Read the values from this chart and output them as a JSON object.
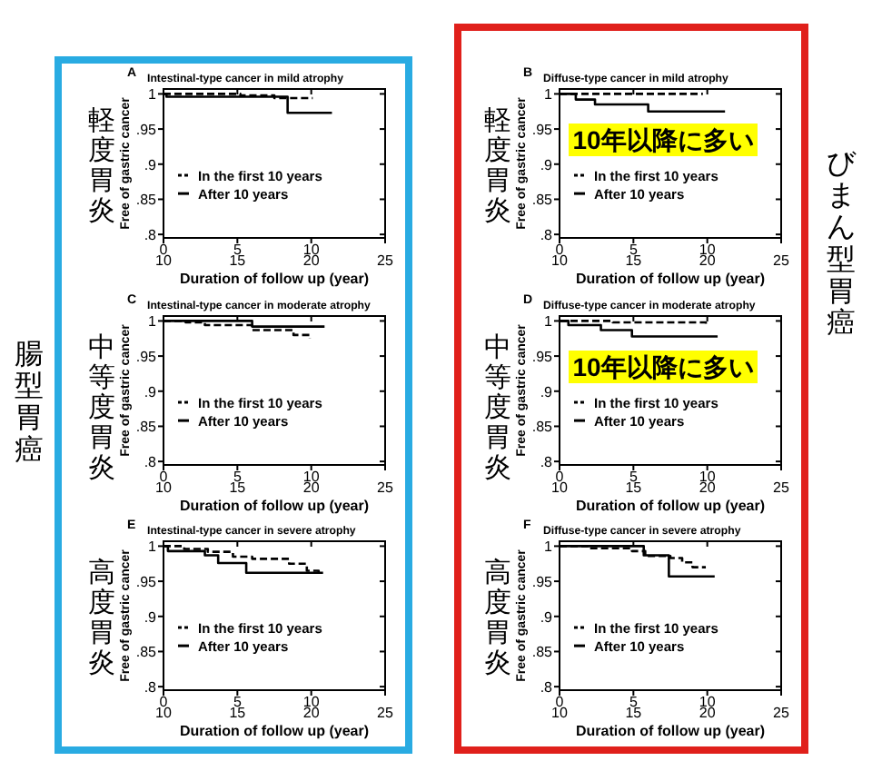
{
  "chart_data": [
    {
      "type": "step",
      "title": "Intestinal-type cancer in mild atrophy",
      "annotations": [
        "A",
        "軽度胃炎"
      ],
      "xlabel": "Duration of follow up (year)",
      "ylabel": "Free of gastric cancer",
      "xlim": [
        10,
        25
      ],
      "xticks": [
        10,
        15,
        20,
        25
      ],
      "x2lim": [
        0,
        15
      ],
      "x2ticks": [
        0,
        5,
        10
      ],
      "ylim": [
        0.795,
        1.007
      ],
      "yticks": [
        {
          "value": 1,
          "label": "1"
        },
        {
          "value": 0.95,
          "label": ".95"
        },
        {
          "value": 0.9,
          "label": ".9"
        },
        {
          "value": 0.85,
          "label": ".85"
        },
        {
          "value": 0.8,
          "label": ".8"
        }
      ],
      "legend": "left",
      "series": [
        {
          "name": "In the first 10 years",
          "color": "#000000",
          "line_style": "dashed",
          "x": [
            10,
            15.2,
            17.5,
            20.1
          ],
          "values": [
            1,
            0.998,
            0.994,
            0.994
          ]
        },
        {
          "name": "After 10 years",
          "color": "#000000",
          "line_style": "solid",
          "x": [
            10,
            10.2,
            18.4,
            21.4
          ],
          "values": [
            1,
            0.996,
            0.973,
            0.973
          ]
        }
      ]
    },
    {
      "type": "step",
      "title": "Diffuse-type cancer in mild atrophy",
      "annotations": [
        "B",
        "軽度胃炎",
        "10年以降に多い"
      ],
      "xlabel": "Duration of follow up (year)",
      "ylabel": "Free of gastric cancer",
      "xlim": [
        10,
        25
      ],
      "xticks": [
        10,
        15,
        20,
        25
      ],
      "x2lim": [
        0,
        15
      ],
      "x2ticks": [
        0,
        5,
        10
      ],
      "ylim": [
        0.795,
        1.007
      ],
      "yticks": [
        {
          "value": 1,
          "label": "1"
        },
        {
          "value": 0.95,
          "label": ".95"
        },
        {
          "value": 0.9,
          "label": ".9"
        },
        {
          "value": 0.85,
          "label": ".85"
        },
        {
          "value": 0.8,
          "label": ".8"
        }
      ],
      "legend": "left",
      "series": [
        {
          "name": "In the first 10 years",
          "color": "#000000",
          "line_style": "dashed",
          "x": [
            10,
            19.7
          ],
          "values": [
            1,
            1
          ]
        },
        {
          "name": "After 10 years",
          "color": "#000000",
          "line_style": "solid",
          "x": [
            10,
            11.1,
            12.4,
            16,
            21.2
          ],
          "values": [
            1,
            0.992,
            0.985,
            0.975,
            0.975
          ]
        }
      ]
    },
    {
      "type": "step",
      "title": "Intestinal-type cancer in moderate atrophy",
      "annotations": [
        "C",
        "中等度胃炎"
      ],
      "xlabel": "Duration of follow up (year)",
      "ylabel": "Free of gastric cancer",
      "xlim": [
        10,
        25
      ],
      "xticks": [
        10,
        15,
        20,
        25
      ],
      "x2lim": [
        0,
        15
      ],
      "x2ticks": [
        0,
        5,
        10
      ],
      "ylim": [
        0.795,
        1.007
      ],
      "yticks": [
        {
          "value": 1,
          "label": "1"
        },
        {
          "value": 0.95,
          "label": ".95"
        },
        {
          "value": 0.9,
          "label": ".9"
        },
        {
          "value": 0.85,
          "label": ".85"
        },
        {
          "value": 0.8,
          "label": ".8"
        }
      ],
      "legend": "left",
      "series": [
        {
          "name": "In the first 10 years",
          "color": "#000000",
          "line_style": "dashed",
          "x": [
            10,
            11.5,
            12.8,
            16,
            18.8,
            19.9
          ],
          "values": [
            1,
            0.998,
            0.994,
            0.987,
            0.98,
            0.975
          ]
        },
        {
          "name": "After 10 years",
          "color": "#000000",
          "line_style": "solid",
          "x": [
            10,
            16,
            20.9
          ],
          "values": [
            1,
            0.992,
            0.992
          ]
        }
      ]
    },
    {
      "type": "step",
      "title": "Diffuse-type cancer in moderate atrophy",
      "annotations": [
        "D",
        "中等度胃炎",
        "10年以降に多い"
      ],
      "xlabel": "Duration of follow up (year)",
      "ylabel": "Free of gastric cancer",
      "xlim": [
        10,
        25
      ],
      "xticks": [
        10,
        15,
        20,
        25
      ],
      "x2lim": [
        0,
        15
      ],
      "x2ticks": [
        0,
        5,
        10
      ],
      "ylim": [
        0.795,
        1.007
      ],
      "yticks": [
        {
          "value": 1,
          "label": "1"
        },
        {
          "value": 0.95,
          "label": ".95"
        },
        {
          "value": 0.9,
          "label": ".9"
        },
        {
          "value": 0.85,
          "label": ".85"
        },
        {
          "value": 0.8,
          "label": ".8"
        }
      ],
      "legend": "left",
      "series": [
        {
          "name": "In the first 10 years",
          "color": "#000000",
          "line_style": "dashed",
          "x": [
            10,
            13.6,
            19.9
          ],
          "values": [
            1,
            0.998,
            0.996
          ]
        },
        {
          "name": "After 10 years",
          "color": "#000000",
          "line_style": "solid",
          "x": [
            10,
            10.6,
            12.8,
            14.9,
            20.7
          ],
          "values": [
            1,
            0.994,
            0.987,
            0.978,
            0.978
          ]
        }
      ]
    },
    {
      "type": "step",
      "title": "Intestinal-type cancer in severe atrophy",
      "annotations": [
        "E",
        "高度胃炎"
      ],
      "xlabel": "Duration of follow up (year)",
      "ylabel": "Free of gastric cancer",
      "xlim": [
        10,
        25
      ],
      "xticks": [
        10,
        15,
        20,
        25
      ],
      "x2lim": [
        0,
        15
      ],
      "x2ticks": [
        0,
        5,
        10
      ],
      "ylim": [
        0.795,
        1.007
      ],
      "yticks": [
        {
          "value": 1,
          "label": "1"
        },
        {
          "value": 0.95,
          "label": ".95"
        },
        {
          "value": 0.9,
          "label": ".9"
        },
        {
          "value": 0.85,
          "label": ".85"
        },
        {
          "value": 0.8,
          "label": ".8"
        }
      ],
      "legend": "left",
      "series": [
        {
          "name": "In the first 10 years",
          "color": "#000000",
          "line_style": "dashed",
          "x": [
            10,
            11.4,
            13,
            14.7,
            16,
            18.5,
            19.7,
            20.5
          ],
          "values": [
            1,
            0.996,
            0.992,
            0.985,
            0.982,
            0.975,
            0.965,
            0.958
          ]
        },
        {
          "name": "After 10 years",
          "color": "#000000",
          "line_style": "solid",
          "x": [
            10,
            10.3,
            12.8,
            13.7,
            15.6,
            20.8
          ],
          "values": [
            1,
            0.993,
            0.987,
            0.976,
            0.962,
            0.962
          ]
        }
      ]
    },
    {
      "type": "step",
      "title": "Diffuse-type cancer in severe atrophy",
      "annotations": [
        "F",
        "高度胃炎"
      ],
      "xlabel": "Duration of follow up (year)",
      "ylabel": "Free of gastric cancer",
      "xlim": [
        10,
        25
      ],
      "xticks": [
        10,
        15,
        20,
        25
      ],
      "x2lim": [
        0,
        15
      ],
      "x2ticks": [
        0,
        5,
        10
      ],
      "ylim": [
        0.795,
        1.007
      ],
      "yticks": [
        {
          "value": 1,
          "label": "1"
        },
        {
          "value": 0.95,
          "label": ".95"
        },
        {
          "value": 0.9,
          "label": ".9"
        },
        {
          "value": 0.85,
          "label": ".85"
        },
        {
          "value": 0.8,
          "label": ".8"
        }
      ],
      "legend": "left",
      "series": [
        {
          "name": "In the first 10 years",
          "color": "#000000",
          "line_style": "dashed",
          "x": [
            10,
            11.9,
            14.9,
            15.8,
            17.5,
            18.3,
            19,
            19.9
          ],
          "values": [
            1,
            0.997,
            0.993,
            0.986,
            0.983,
            0.977,
            0.97,
            0.97
          ]
        },
        {
          "name": "After 10 years",
          "color": "#000000",
          "line_style": "solid",
          "x": [
            10,
            15.7,
            17.4,
            20.5
          ],
          "values": [
            1,
            0.987,
            0.957,
            0.957
          ]
        }
      ]
    },
    {
      "type": "other",
      "title": "腸型胃癌",
      "color": "#29abe2"
    },
    {
      "type": "other",
      "title": "びまん型胃癌",
      "color": "#e0201b"
    }
  ]
}
